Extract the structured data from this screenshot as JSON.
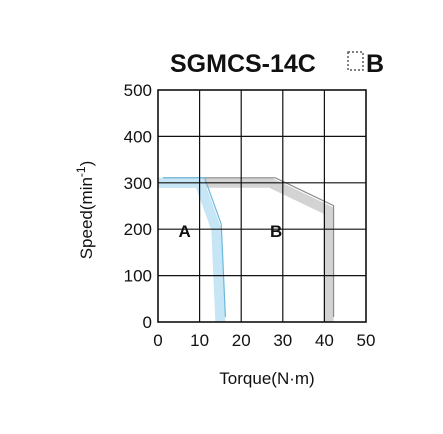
{
  "chart_data": {
    "type": "area",
    "title": "SGMCS-14C",
    "title_suffix": "B",
    "xlabel": "Torque(N·m)",
    "ylabel": "Speed(min",
    "ylabel_sup": "-1",
    "ylabel_close": ")",
    "xlim": [
      0,
      50
    ],
    "ylim": [
      0,
      500
    ],
    "x_ticks": [
      0,
      10,
      20,
      30,
      40,
      50
    ],
    "y_ticks": [
      0,
      100,
      200,
      300,
      400,
      500
    ],
    "grid": true,
    "series": [
      {
        "name": "A",
        "color": "#c6e5f5",
        "edge_color": "#6bb8dc",
        "points": [
          [
            0,
            300
          ],
          [
            10,
            300
          ],
          [
            14,
            200
          ],
          [
            15,
            0
          ]
        ]
      },
      {
        "name": "B",
        "color": "#d3d3d3",
        "edge_color": "#8a8a8a",
        "points": [
          [
            0,
            300
          ],
          [
            27,
            300
          ],
          [
            41,
            240
          ],
          [
            41,
            0
          ]
        ]
      }
    ],
    "region_labels": [
      {
        "text": "A",
        "x": 3,
        "y": 170
      },
      {
        "text": "B",
        "x": 25,
        "y": 170
      }
    ]
  }
}
